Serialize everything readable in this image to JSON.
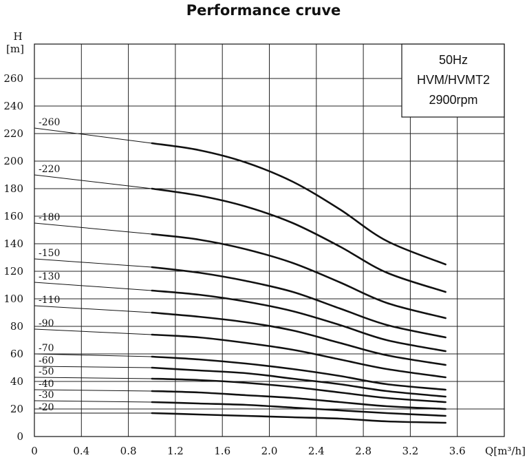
{
  "chart_data": {
    "type": "line",
    "title": "Performance cruve",
    "xlabel": "Q[m³/h]",
    "ylabel_top": "H",
    "ylabel_unit": "[m]",
    "x_ticks": [
      "0",
      "0.4",
      "0.8",
      "1.2",
      "1.6",
      "2.0",
      "2.4",
      "2.8",
      "3.2",
      "3.6"
    ],
    "y_ticks": [
      "0",
      "20",
      "40",
      "60",
      "80",
      "100",
      "120",
      "140",
      "160",
      "180",
      "200",
      "220",
      "240",
      "260"
    ],
    "xlim": [
      0,
      4.0
    ],
    "ylim": [
      0,
      285
    ],
    "grid": true,
    "info_box": [
      "50Hz",
      "HVM/HVMT2",
      "2900rpm"
    ],
    "x": [
      1.0,
      1.4,
      1.8,
      2.2,
      2.6,
      3.0,
      3.5
    ],
    "series": [
      {
        "name": "-260",
        "lead_y0": 224,
        "values": [
          213,
          208,
          199,
          185,
          165,
          142,
          125
        ]
      },
      {
        "name": "-220",
        "lead_y0": 190,
        "values": [
          180,
          175,
          167,
          155,
          138,
          119,
          105
        ]
      },
      {
        "name": "-180",
        "lead_y0": 155,
        "values": [
          147,
          143,
          136,
          126,
          112,
          97,
          86
        ]
      },
      {
        "name": "-150",
        "lead_y0": 129,
        "values": [
          123,
          119,
          113,
          105,
          93,
          81,
          72
        ]
      },
      {
        "name": "-130",
        "lead_y0": 112,
        "values": [
          106,
          103,
          98,
          91,
          81,
          70,
          62
        ]
      },
      {
        "name": "-110",
        "lead_y0": 95,
        "values": [
          90,
          87,
          83,
          77,
          68,
          59,
          52
        ]
      },
      {
        "name": "-90",
        "lead_y0": 78,
        "values": [
          74,
          72,
          68,
          63,
          56,
          49,
          43
        ]
      },
      {
        "name": "-70",
        "lead_y0": 60,
        "values": [
          58,
          56,
          53,
          49,
          44,
          38,
          34
        ]
      },
      {
        "name": "-60",
        "lead_y0": 51,
        "values": [
          50,
          48,
          46,
          42,
          38,
          33,
          29
        ]
      },
      {
        "name": "-50",
        "lead_y0": 43,
        "values": [
          42,
          41,
          39,
          36,
          32,
          28,
          25
        ]
      },
      {
        "name": "-40",
        "lead_y0": 34,
        "values": [
          33,
          32,
          30,
          28,
          25,
          22,
          20
        ]
      },
      {
        "name": "-30",
        "lead_y0": 26,
        "values": [
          25,
          24,
          23,
          21,
          19,
          17,
          15
        ]
      },
      {
        "name": "-20",
        "lead_y0": 17,
        "values": [
          17,
          16,
          15,
          14,
          13,
          11,
          10
        ]
      }
    ]
  }
}
